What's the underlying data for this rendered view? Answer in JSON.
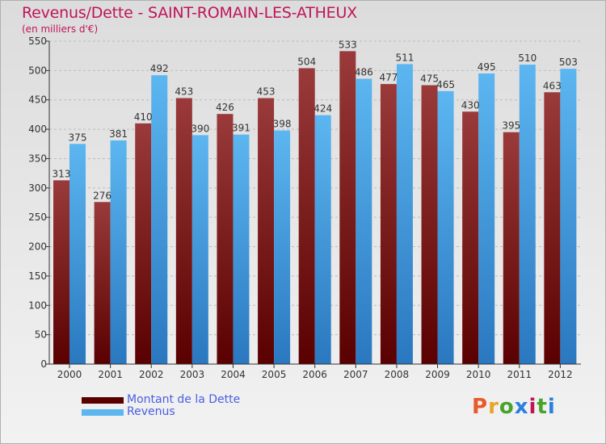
{
  "title": "Revenus/Dette - SAINT-ROMAIN-LES-ATHEUX",
  "subtitle": "(en milliers d'€)",
  "brand": {
    "text": "Proxiti",
    "letter_colors": [
      "#e85a2a",
      "#e8a32a",
      "#48a32a",
      "#2a7fe0",
      "#c0145a",
      "#48a32a",
      "#2a7fe0"
    ]
  },
  "colors": {
    "dette_dark": "#5a0000",
    "dette_light": "#9a3a3a",
    "revenus_dark": "#2a78c0",
    "revenus_light": "#5cb6f0",
    "grid": "#bcbcbc",
    "axis": "#333333"
  },
  "chart_data": {
    "type": "bar",
    "title": "Revenus/Dette - SAINT-ROMAIN-LES-ATHEUX",
    "subtitle": "(en milliers d'€)",
    "categories": [
      "2000",
      "2001",
      "2002",
      "2003",
      "2004",
      "2005",
      "2006",
      "2007",
      "2008",
      "2009",
      "2010",
      "2011",
      "2012"
    ],
    "series": [
      {
        "name": "Montant de la Dette",
        "values": [
          313,
          276,
          410,
          453,
          426,
          453,
          504,
          533,
          477,
          475,
          430,
          395,
          463
        ]
      },
      {
        "name": "Revenus",
        "values": [
          375,
          381,
          492,
          390,
          391,
          398,
          424,
          486,
          511,
          465,
          495,
          510,
          503
        ]
      }
    ],
    "ylim": [
      0,
      550
    ],
    "yticks": [
      0,
      50,
      100,
      150,
      200,
      250,
      300,
      350,
      400,
      450,
      500,
      550
    ],
    "grid": true,
    "legend_position": "bottom-left"
  }
}
